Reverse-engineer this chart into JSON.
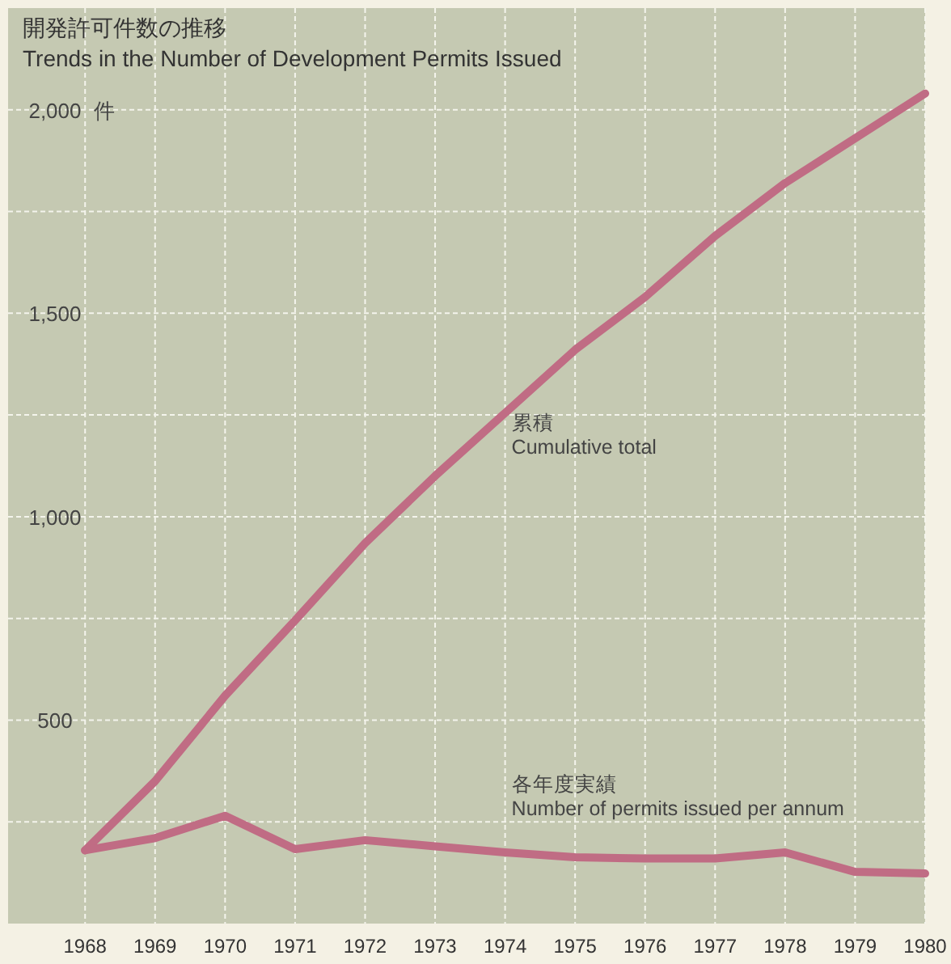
{
  "chart_data": {
    "type": "line",
    "title": "開発許可件数の推移",
    "subtitle": "Trends in the Number of Development Permits Issued",
    "ylabel": "件",
    "x": [
      1968,
      1969,
      1970,
      1971,
      1972,
      1973,
      1974,
      1975,
      1976,
      1977,
      1978,
      1979,
      1980
    ],
    "series": [
      {
        "name": "累積\nCumulative total",
        "color": "#c06c84",
        "values": [
          180,
          350,
          560,
          745,
          935,
          1100,
          1255,
          1410,
          1540,
          1690,
          1820,
          1930,
          2040
        ]
      },
      {
        "name": "各年度実績\nNumber of permits issued per annum",
        "color": "#c06c84",
        "values": [
          180,
          210,
          265,
          183,
          205,
          190,
          175,
          163,
          160,
          160,
          175,
          127,
          123
        ]
      }
    ],
    "xlim": [
      1966.9,
      1980
    ],
    "ylim": [
      0,
      2250
    ],
    "xticks": [
      1968,
      1969,
      1970,
      1971,
      1972,
      1973,
      1974,
      1975,
      1976,
      1977,
      1978,
      1979,
      1980
    ],
    "yticks": [
      {
        "value": 250,
        "label": null
      },
      {
        "value": 500,
        "label": "500"
      },
      {
        "value": 750,
        "label": null
      },
      {
        "value": 1000,
        "label": "1,000"
      },
      {
        "value": 1250,
        "label": null
      },
      {
        "value": 1500,
        "label": "1,500"
      },
      {
        "value": 1750,
        "label": null
      },
      {
        "value": 2000,
        "label": "2,000"
      }
    ],
    "grid": true,
    "legend": false,
    "marker": "none",
    "line_style": "solid"
  }
}
